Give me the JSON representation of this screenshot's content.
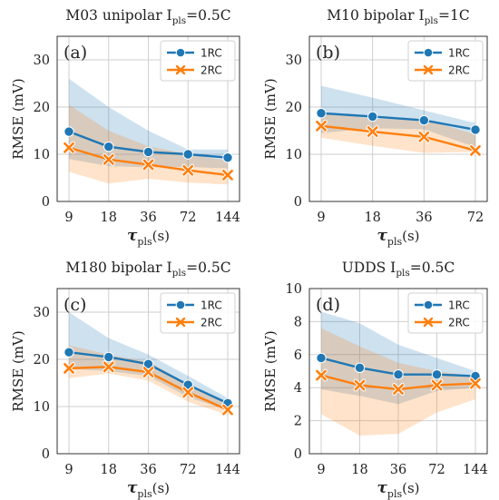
{
  "colors": {
    "series1": "#1f77b4",
    "series2": "#ff7f0e",
    "grid": "#cfcfcf"
  },
  "chart_data": [
    {
      "type": "line",
      "title": "M03 unipolar I",
      "title_sub": "pls",
      "title_suffix": "=0.5C",
      "panel_label": "(a)",
      "categories": [
        "9",
        "18",
        "36",
        "72",
        "144"
      ],
      "xlabel": "τ",
      "xlabel_sub": "pls",
      "xlabel_suffix": "(s)",
      "ylabel": "RMSE (mV)",
      "ylim": [
        0,
        35
      ],
      "yticks": [
        0,
        10,
        20,
        30
      ],
      "grid": true,
      "legend": "top-right",
      "series": [
        {
          "name": "1RC",
          "marker": "circle",
          "values": [
            14.8,
            11.6,
            10.5,
            10.0,
            9.3
          ],
          "band_low": [
            9.0,
            7.5,
            7.2,
            7.3,
            7.0
          ],
          "band_high": [
            26.0,
            20.0,
            15.0,
            11.0,
            11.0
          ]
        },
        {
          "name": "2RC",
          "marker": "x",
          "values": [
            11.4,
            8.9,
            7.8,
            6.6,
            5.6
          ],
          "band_low": [
            6.3,
            3.8,
            4.8,
            4.0,
            3.6
          ],
          "band_high": [
            20.5,
            15.0,
            11.7,
            10.0,
            8.6
          ]
        }
      ]
    },
    {
      "type": "line",
      "title": "M10 bipolar I",
      "title_sub": "pls",
      "title_suffix": "=1C",
      "panel_label": "(b)",
      "categories": [
        "9",
        "18",
        "36",
        "72"
      ],
      "xlabel": "τ",
      "xlabel_sub": "pls",
      "xlabel_suffix": "(s)",
      "ylabel": "RMSE (mV)",
      "ylim": [
        0,
        35
      ],
      "yticks": [
        0,
        10,
        20,
        30
      ],
      "grid": true,
      "legend": "top-right",
      "series": [
        {
          "name": "1RC",
          "marker": "circle",
          "values": [
            18.7,
            18.0,
            17.2,
            15.2
          ],
          "band_low": [
            14.5,
            15.5,
            15.3,
            11.5
          ],
          "band_high": [
            24.5,
            22.0,
            19.3,
            16.6
          ]
        },
        {
          "name": "2RC",
          "marker": "x",
          "values": [
            16.0,
            14.8,
            13.7,
            10.8
          ],
          "band_low": [
            13.5,
            11.8,
            10.3,
            10.5
          ],
          "band_high": [
            19.0,
            17.5,
            17.4,
            14.2
          ]
        }
      ]
    },
    {
      "type": "line",
      "title": "M180 bipolar I",
      "title_sub": "pls",
      "title_suffix": "=0.5C",
      "panel_label": "(c)",
      "categories": [
        "9",
        "18",
        "36",
        "72",
        "144"
      ],
      "xlabel": "τ",
      "xlabel_sub": "pls",
      "xlabel_suffix": "(s)",
      "ylabel": "RMSE (mV)",
      "ylim": [
        0,
        35
      ],
      "yticks": [
        0,
        10,
        20,
        30
      ],
      "grid": true,
      "legend": "top-right",
      "series": [
        {
          "name": "1RC",
          "marker": "circle",
          "values": [
            21.5,
            20.5,
            19.0,
            14.6,
            10.7
          ],
          "band_low": [
            18.0,
            17.5,
            16.5,
            12.0,
            9.2
          ],
          "band_high": [
            30.0,
            24.5,
            21.0,
            16.5,
            11.8
          ]
        },
        {
          "name": "2RC",
          "marker": "x",
          "values": [
            18.1,
            18.4,
            17.3,
            13.0,
            9.3
          ],
          "band_low": [
            16.0,
            17.0,
            15.5,
            11.0,
            8.2
          ],
          "band_high": [
            23.0,
            21.0,
            19.5,
            14.8,
            10.5
          ]
        }
      ]
    },
    {
      "type": "line",
      "title": "UDDS I",
      "title_sub": "pls",
      "title_suffix": "=0.5C",
      "panel_label": "(d)",
      "categories": [
        "9",
        "18",
        "36",
        "72",
        "144"
      ],
      "xlabel": "τ",
      "xlabel_sub": "pls",
      "xlabel_suffix": "(s)",
      "ylabel": "RMSE (mV)",
      "ylim": [
        0,
        10
      ],
      "yticks": [
        0,
        2,
        4,
        6,
        8,
        10
      ],
      "grid": true,
      "legend": "top-right",
      "series": [
        {
          "name": "1RC",
          "marker": "circle",
          "values": [
            5.8,
            5.2,
            4.8,
            4.8,
            4.7
          ],
          "band_low": [
            3.9,
            3.5,
            3.0,
            3.8,
            4.0
          ],
          "band_high": [
            8.6,
            7.9,
            6.6,
            5.8,
            5.0
          ]
        },
        {
          "name": "2RC",
          "marker": "x",
          "values": [
            4.75,
            4.15,
            3.9,
            4.15,
            4.25
          ],
          "band_low": [
            2.4,
            1.1,
            1.2,
            2.5,
            3.3
          ],
          "band_high": [
            7.6,
            6.5,
            5.5,
            5.0,
            4.7
          ]
        }
      ]
    }
  ]
}
